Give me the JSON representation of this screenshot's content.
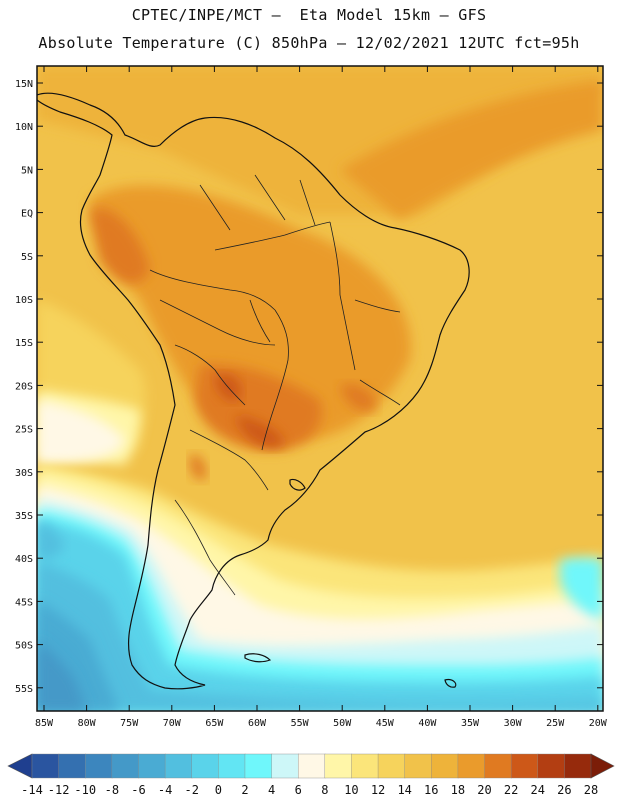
{
  "header": {
    "line1": "CPTEC/INPE/MCT –  Eta Model 15km – GFS",
    "line2": "Absolute Temperature (C) 850hPa – 12/02/2021 12UTC fct=95h"
  },
  "map": {
    "lat_labels": [
      "15N",
      "10N",
      "5N",
      "EQ",
      "5S",
      "10S",
      "15S",
      "20S",
      "25S",
      "30S",
      "35S",
      "40S",
      "45S",
      "50S",
      "55S"
    ],
    "lon_labels": [
      "85W",
      "80W",
      "75W",
      "70W",
      "65W",
      "60W",
      "55W",
      "50W",
      "45W",
      "40W",
      "35W",
      "30W",
      "25W",
      "20W"
    ]
  },
  "colorbar": {
    "labels": [
      "-14",
      "-12",
      "-10",
      "-8",
      "-6",
      "-4",
      "-2",
      "0",
      "2",
      "4",
      "6",
      "8",
      "10",
      "12",
      "14",
      "16",
      "18",
      "20",
      "22",
      "24",
      "26",
      "28"
    ],
    "colors": [
      "#1f3f8f",
      "#2a55a0",
      "#3470b0",
      "#3c86be",
      "#4499c8",
      "#4aabd3",
      "#52bfdf",
      "#5ad3ea",
      "#62e5f3",
      "#6ff7fb",
      "#cdf7f8",
      "#fff8e6",
      "#fff6a8",
      "#fbe57a",
      "#f6d35c",
      "#f1c24a",
      "#eeb33a",
      "#ea9b2c",
      "#e07a21",
      "#cd5818",
      "#b33e12",
      "#962a0c",
      "#7b1d08"
    ]
  }
}
